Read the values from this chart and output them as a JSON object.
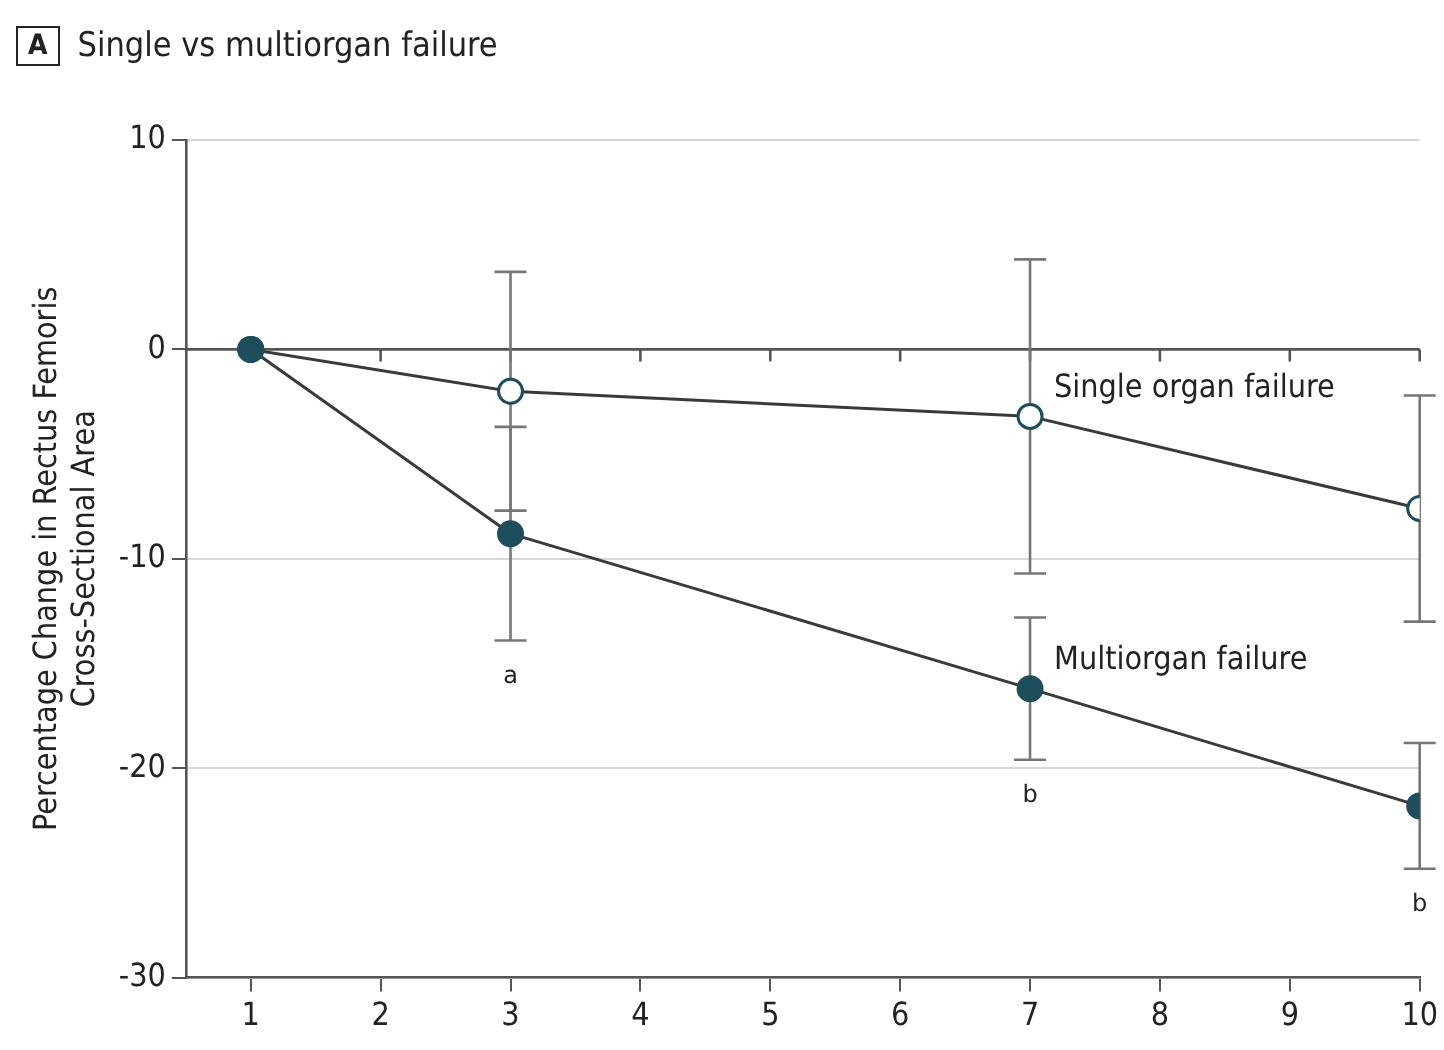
{
  "chart_data": {
    "type": "line",
    "title": "Single vs multiorgan failure",
    "ylabel": "Percentage Change in Rectus Femoris\nCross-Sectional Area",
    "x": [
      1,
      3,
      7,
      10
    ],
    "series": [
      {
        "name": "Single organ failure",
        "color": "#ffffff",
        "values": [
          0,
          -2.0,
          -3.2,
          -7.6
        ],
        "errors": [
          null,
          5.7,
          7.5,
          5.4
        ]
      },
      {
        "name": "Multiorgan failure",
        "color": "#1e4d5c",
        "values": [
          0,
          -8.8,
          -16.2,
          -21.8
        ],
        "errors": [
          null,
          5.1,
          3.4,
          3.0
        ]
      }
    ],
    "xlim": [
      0.5,
      10
    ],
    "xticks": [
      1,
      2,
      3,
      4,
      5,
      6,
      7,
      8,
      9,
      10
    ],
    "ylim": [
      -30,
      10
    ],
    "yticks": [
      -30,
      -20,
      -10,
      0,
      10
    ],
    "grid": "y",
    "legend": false,
    "marker": "circle",
    "line_style": "solid",
    "ref_lines": [
      {
        "axis": "y",
        "value": 0,
        "color": "#555555"
      }
    ],
    "annotations": [
      "A",
      "a",
      "b",
      "b"
    ]
  }
}
